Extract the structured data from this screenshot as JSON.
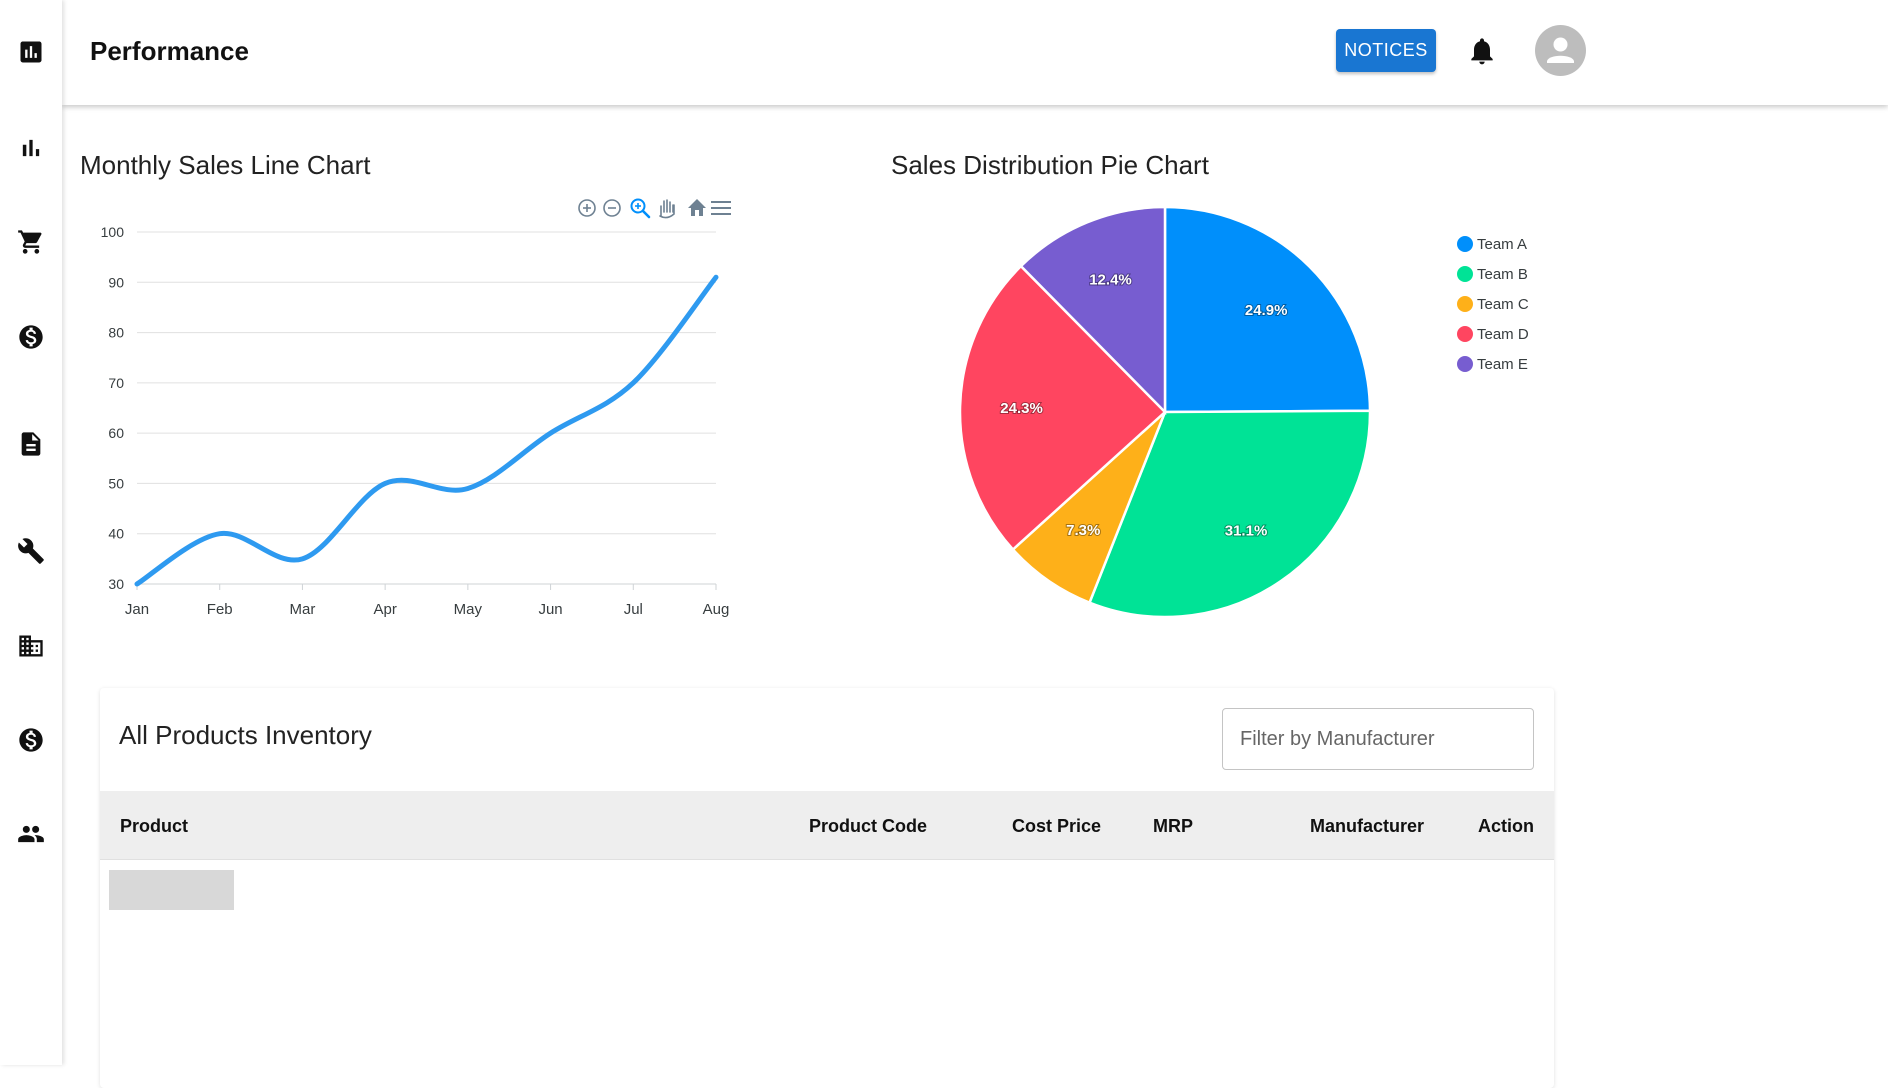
{
  "sidebar": {
    "items": [
      {
        "icon": "assessment-icon"
      },
      {
        "icon": "bar-chart-icon"
      },
      {
        "icon": "shopping-cart-icon"
      },
      {
        "icon": "dollar-icon"
      },
      {
        "icon": "document-icon"
      },
      {
        "icon": "wrench-icon"
      },
      {
        "icon": "building-icon"
      },
      {
        "icon": "dollar-icon"
      },
      {
        "icon": "people-icon"
      }
    ]
  },
  "header": {
    "title": "Performance",
    "notices_label": "NOTICES",
    "accent_color": "#1976d2"
  },
  "line_chart": {
    "title": "Monthly Sales Line Chart",
    "toolbar": [
      "zoom-in-icon",
      "zoom-out-icon",
      "selection-zoom-icon",
      "pan-icon",
      "home-icon",
      "menu-icon"
    ]
  },
  "pie_chart": {
    "title": "Sales Distribution Pie Chart"
  },
  "chart_data": [
    {
      "type": "line",
      "categories": [
        "Jan",
        "Feb",
        "Mar",
        "Apr",
        "May",
        "Jun",
        "Jul",
        "Aug"
      ],
      "series": [
        {
          "values": [
            30,
            40,
            35,
            50,
            49,
            60,
            70,
            91
          ]
        }
      ],
      "ylim": [
        30,
        100
      ],
      "yticks": [
        "30",
        "40",
        "50",
        "60",
        "70",
        "80",
        "90",
        "100"
      ],
      "grid": true,
      "color": "#2e9af0"
    },
    {
      "type": "pie",
      "labels": [
        "Team A",
        "Team B",
        "Team C",
        "Team D",
        "Team E"
      ],
      "values": [
        24.9,
        31.1,
        7.3,
        24.3,
        12.4
      ],
      "data_labels": [
        "24.9%",
        "31.1%",
        "7.3%",
        "24.3%",
        "12.4%"
      ],
      "colors": [
        "#008ffb",
        "#00e396",
        "#feb019",
        "#ff4560",
        "#775dd0"
      ],
      "legend": "right"
    }
  ],
  "inventory": {
    "title": "All Products Inventory",
    "filter_placeholder": "Filter by Manufacturer",
    "columns": [
      "Product",
      "Product Code",
      "Cost Price",
      "MRP",
      "Manufacturer",
      "Action"
    ]
  }
}
